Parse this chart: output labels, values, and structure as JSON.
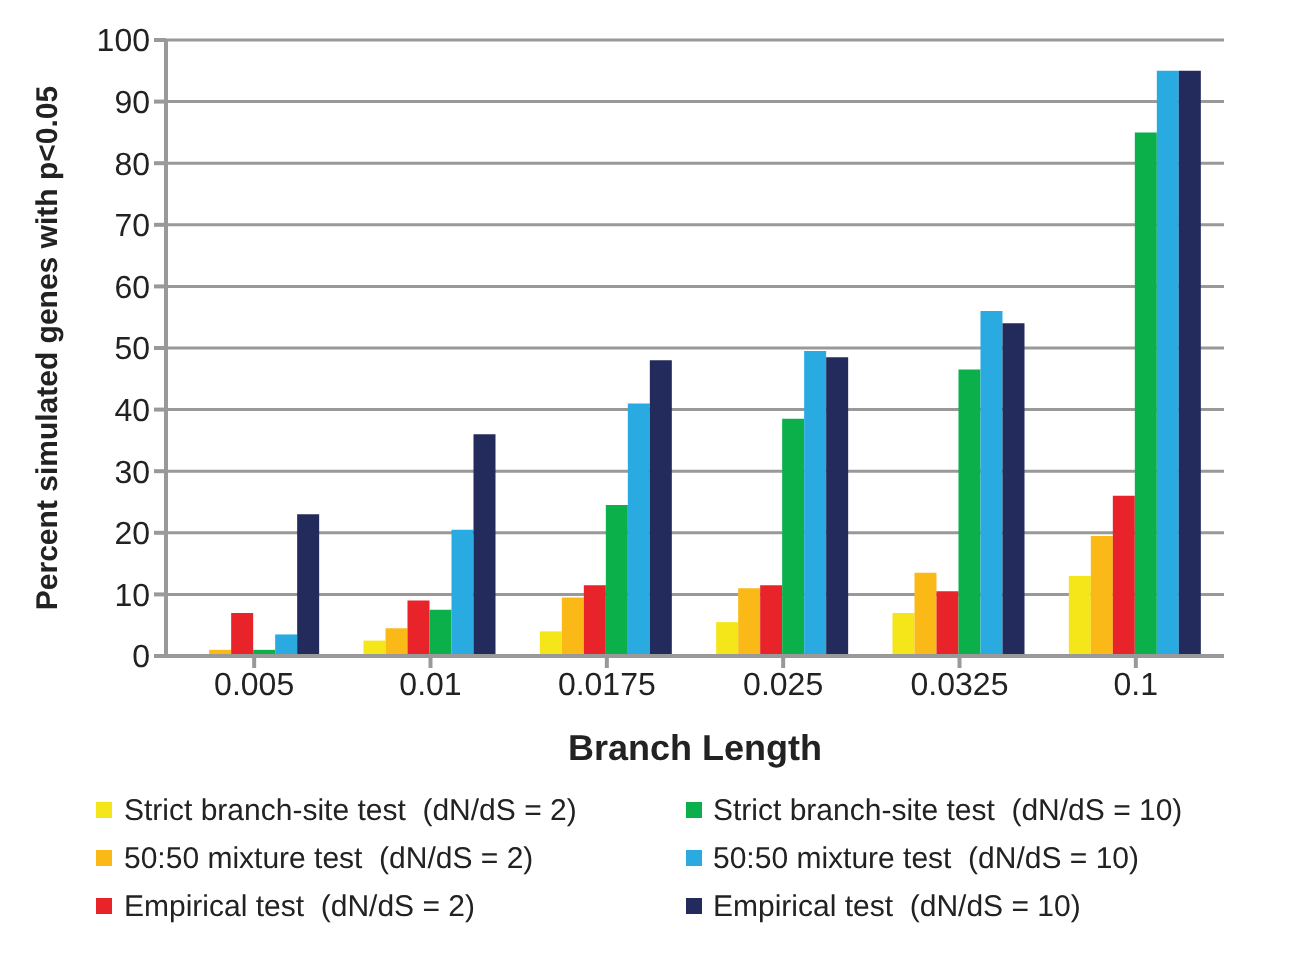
{
  "chart_data": {
    "type": "bar",
    "xlabel": "Branch Length",
    "ylabel": "Percent simulated genes with p<0.05",
    "categories": [
      "0.005",
      "0.01",
      "0.0175",
      "0.025",
      "0.0325",
      "0.1"
    ],
    "series": [
      {
        "name": "Strict branch-site test  (dN/dS = 2)",
        "color": "#f5e61a",
        "values": [
          0,
          2.5,
          4,
          5.5,
          7,
          13
        ]
      },
      {
        "name": "50:50 mixture test  (dN/dS = 2)",
        "color": "#fbb917",
        "values": [
          1,
          4.5,
          9.5,
          11,
          13.5,
          19.5
        ]
      },
      {
        "name": "Empirical test  (dN/dS = 2)",
        "color": "#e8232a",
        "values": [
          7,
          9,
          11.5,
          11.5,
          10.5,
          26
        ]
      },
      {
        "name": "Strict branch-site test  (dN/dS = 10)",
        "color": "#0bb04b",
        "values": [
          1,
          7.5,
          24.5,
          38.5,
          46.5,
          85
        ]
      },
      {
        "name": "50:50 mixture test  (dN/dS = 10)",
        "color": "#29abe2",
        "values": [
          3.5,
          20.5,
          41,
          49.5,
          56,
          95
        ]
      },
      {
        "name": "Empirical test  (dN/dS = 10)",
        "color": "#232a5c",
        "values": [
          23,
          36,
          48,
          48.5,
          54,
          95
        ]
      }
    ],
    "ylim": [
      0,
      100
    ],
    "yticks": [
      0,
      10,
      20,
      30,
      40,
      50,
      60,
      70,
      80,
      90,
      100
    ],
    "grid": "y",
    "legend": "bottom"
  }
}
